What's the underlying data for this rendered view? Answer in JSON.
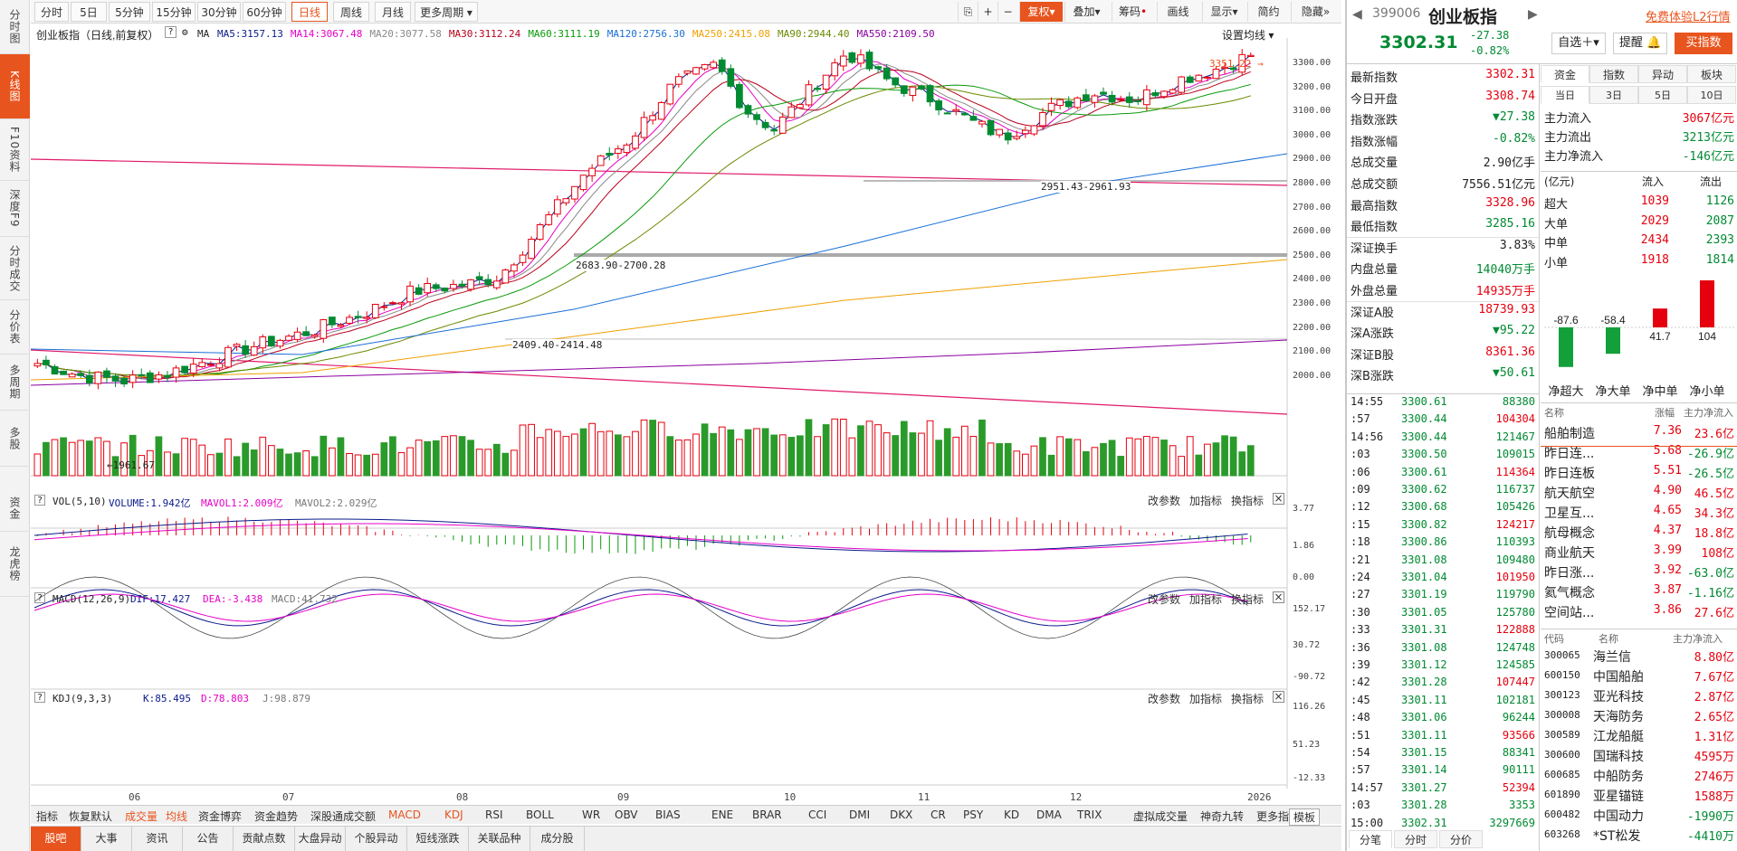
{
  "left_tabs": [
    "分时图",
    "K线图",
    "F10资料",
    "深度F9",
    "分时成交",
    "分价表",
    "多周期",
    "多股",
    "资金",
    "龙虎榜"
  ],
  "toolbar": {
    "periods": [
      "分时",
      "5日",
      "5分钟",
      "15分钟",
      "30分钟",
      "60分钟",
      "日线",
      "周线",
      "月线",
      "更多周期"
    ],
    "active": "日线",
    "right": [
      "复权",
      "叠加",
      "筹码",
      "画线",
      "显示",
      "简约",
      "隐藏"
    ]
  },
  "chart": {
    "title": "创业板指（日线,前复权）",
    "settings": "设置均线",
    "ma_label": "MA",
    "mas": [
      {
        "label": "MA5:3157.13",
        "color": "#0a1a8c"
      },
      {
        "label": "MA14:3067.48",
        "color": "#e600c8"
      },
      {
        "label": "MA20:3077.58",
        "color": "#888888"
      },
      {
        "label": "MA30:3112.24",
        "color": "#b8001a"
      },
      {
        "label": "MA60:3111.19",
        "color": "#0a9a0a"
      },
      {
        "label": "MA120:2756.30",
        "color": "#1a6fd6"
      },
      {
        "label": "MA250:2415.08",
        "color": "#f0a000"
      },
      {
        "label": "MA90:2944.40",
        "color": "#6a8a00"
      },
      {
        "label": "MA550:2109.50",
        "color": "#8a00a0"
      }
    ],
    "y_labels": [
      "3300.00",
      "3200.00",
      "3100.00",
      "3000.00",
      "2900.00",
      "2800.00",
      "2700.00",
      "2600.00",
      "2500.00",
      "2400.00",
      "2300.00",
      "2200.00",
      "2100.00",
      "2000.00"
    ],
    "annotations": {
      "high": "3351.22",
      "a1": "2951.43-2961.93",
      "a2": "2683.90-2700.28",
      "a3": "2409.40-2414.48",
      "low": "1961.67"
    },
    "x_labels": [
      "06",
      "07",
      "08",
      "09",
      "10",
      "11",
      "12",
      "2026"
    ]
  },
  "vol": {
    "label": "VOL(5,10)",
    "v1": "VOLUME:1.942亿",
    "v2": "MAVOL1:2.009亿",
    "v3": "MAVOL2:2.029亿",
    "y": [
      "3.77",
      "1.86",
      "0.00"
    ]
  },
  "macd": {
    "label": "MACD(12,26,9)",
    "v1": "DIF:17.427",
    "v2": "DEA:-3.438",
    "v3": "MACD:41.732",
    "y": [
      "152.17",
      "30.72",
      "-90.72"
    ]
  },
  "kdj": {
    "label": "KDJ(9,3,3)",
    "v1": "K:85.495",
    "v2": "D:78.803",
    "v3": "J:98.879",
    "y": [
      "116.26",
      "51.23",
      "-12.33"
    ]
  },
  "panel_buttons": [
    "改参数",
    "加指标",
    "换指标"
  ],
  "indicators": [
    "指标",
    "恢复默认",
    "成交量",
    "均线",
    "资金博弈",
    "资金趋势",
    "深股通成交额",
    "MACD",
    "KDJ",
    "RSI",
    "BOLL",
    "WR",
    "OBV",
    "BIAS",
    "ENE",
    "BRAR",
    "CCI",
    "DMI",
    "DKX",
    "CR",
    "PSY",
    "KD",
    "DMA",
    "TRIX",
    "虚拟成交量",
    "神奇九转",
    "更多指标",
    "模板"
  ],
  "bottom_tabs": [
    "股吧",
    "大事",
    "资讯",
    "公告",
    "贡献点数",
    "大盘异动",
    "个股异动",
    "短线涨跌",
    "关联品种",
    "成分股"
  ],
  "quote": {
    "code": "399006",
    "name": "创业板指",
    "l2": "免费体验L2行情",
    "price": "3302.31",
    "chg": "-27.38",
    "pct": "-0.82%",
    "btn_watch": "自选",
    "btn_remind": "提醒",
    "btn_buy": "买指数",
    "rows": [
      {
        "k": "最新指数",
        "v": "3302.31",
        "c": "red"
      },
      {
        "k": "今日开盘",
        "v": "3308.74",
        "c": "red"
      },
      {
        "k": "指数涨跌",
        "v": "▼27.38",
        "c": "green"
      },
      {
        "k": "指数涨幅",
        "v": "-0.82%",
        "c": "green"
      },
      {
        "k": "总成交量",
        "v": "2.90亿手",
        "c": "black"
      },
      {
        "k": "总成交额",
        "v": "7556.51亿元",
        "c": "black"
      },
      {
        "k": "最高指数",
        "v": "3328.96",
        "c": "red"
      },
      {
        "k": "最低指数",
        "v": "3285.16",
        "c": "green"
      },
      {
        "k": "深证换手",
        "v": "3.83%",
        "c": "black"
      },
      {
        "k": "内盘总量",
        "v": "14040万手",
        "c": "green"
      },
      {
        "k": "外盘总量",
        "v": "14935万手",
        "c": "red"
      },
      {
        "k": "深证A股",
        "v": "18739.93",
        "c": "red"
      },
      {
        "k": "深A涨跌",
        "v": "▼95.22",
        "c": "green"
      },
      {
        "k": "深证B股",
        "v": "8361.36",
        "c": "red"
      },
      {
        "k": "深B涨跌",
        "v": "▼50.61",
        "c": "green"
      }
    ],
    "ticks": [
      [
        "14:55",
        "3300.61",
        "88380"
      ],
      [
        ":57",
        "3300.44",
        "104304"
      ],
      [
        "14:56",
        "3300.44",
        "121467"
      ],
      [
        ":03",
        "3300.50",
        "109015"
      ],
      [
        ":06",
        "3300.61",
        "114364"
      ],
      [
        ":09",
        "3300.62",
        "116737"
      ],
      [
        ":12",
        "3300.68",
        "105426"
      ],
      [
        ":15",
        "3300.82",
        "124217"
      ],
      [
        ":18",
        "3300.86",
        "110393"
      ],
      [
        ":21",
        "3301.08",
        "109480"
      ],
      [
        ":24",
        "3301.04",
        "101950"
      ],
      [
        ":27",
        "3301.19",
        "119790"
      ],
      [
        ":30",
        "3301.05",
        "125780"
      ],
      [
        ":33",
        "3301.31",
        "122888"
      ],
      [
        ":36",
        "3301.08",
        "124748"
      ],
      [
        ":39",
        "3301.12",
        "124585"
      ],
      [
        ":42",
        "3301.28",
        "107447"
      ],
      [
        ":45",
        "3301.11",
        "102181"
      ],
      [
        ":48",
        "3301.06",
        "96244"
      ],
      [
        ":51",
        "3301.11",
        "93566"
      ],
      [
        ":54",
        "3301.15",
        "88341"
      ],
      [
        ":57",
        "3301.14",
        "90111"
      ],
      [
        "14:57",
        "3301.27",
        "52394"
      ],
      [
        ":03",
        "3301.28",
        "3353"
      ],
      [
        "15:00",
        "3302.31",
        "3297669"
      ]
    ],
    "tick_tabs": [
      "分笔",
      "分时",
      "分价"
    ],
    "fund_tabs": [
      "资金",
      "指数",
      "异动",
      "板块"
    ],
    "fund_sub": [
      "当日",
      "3日",
      "5日",
      "10日"
    ],
    "fund": [
      {
        "k": "主力流入",
        "v": "3067亿元",
        "c": "red"
      },
      {
        "k": "主力流出",
        "v": "3213亿元",
        "c": "green"
      },
      {
        "k": "主力净流入",
        "v": "-146亿元",
        "c": "green"
      }
    ],
    "flow_head": [
      "(亿元)",
      "流入",
      "流出"
    ],
    "flow": [
      [
        "超大",
        "1039",
        "1126"
      ],
      [
        "大单",
        "2029",
        "2087"
      ],
      [
        "中单",
        "2434",
        "2393"
      ],
      [
        "小单",
        "1918",
        "1814"
      ]
    ],
    "net": [
      {
        "label": "净超大",
        "value": -87.6
      },
      {
        "label": "净大单",
        "value": -58.4
      },
      {
        "label": "净中单",
        "value": 41.7
      },
      {
        "label": "净小单",
        "value": 104
      }
    ],
    "sector_head": [
      "名称",
      "涨幅",
      "主力净流入"
    ],
    "sectors": [
      [
        "船舶制造",
        "7.36",
        "23.6亿"
      ],
      [
        "昨日连...",
        "5.68",
        "-26.9亿"
      ],
      [
        "昨日连板",
        "5.51",
        "-26.5亿"
      ],
      [
        "航天航空",
        "4.90",
        "46.5亿"
      ],
      [
        "卫星互...",
        "4.65",
        "34.3亿"
      ],
      [
        "航母概念",
        "4.37",
        "18.8亿"
      ],
      [
        "商业航天",
        "3.99",
        "108亿"
      ],
      [
        "昨日涨...",
        "3.92",
        "-63.0亿"
      ],
      [
        "氦气概念",
        "3.87",
        "-1.16亿"
      ],
      [
        "空间站...",
        "3.86",
        "27.6亿"
      ]
    ],
    "stock_head": [
      "代码",
      "名称",
      "主力净流入"
    ],
    "stocks": [
      [
        "300065",
        "海兰信",
        "8.80亿"
      ],
      [
        "600150",
        "中国船舶",
        "7.67亿"
      ],
      [
        "300123",
        "亚光科技",
        "2.87亿"
      ],
      [
        "300008",
        "天海防务",
        "2.65亿"
      ],
      [
        "300589",
        "江龙船艇",
        "1.31亿"
      ],
      [
        "300600",
        "国瑞科技",
        "4595万"
      ],
      [
        "600685",
        "中船防务",
        "2746万"
      ],
      [
        "601890",
        "亚星锚链",
        "1588万"
      ],
      [
        "600482",
        "中国动力",
        "-1990万"
      ],
      [
        "603268",
        "*ST松发",
        "-4410万"
      ]
    ]
  },
  "chart_data": {
    "type": "candlestick",
    "title": "创业板指（日线,前复权）",
    "ylim": [
      1950,
      3360
    ],
    "x": [
      "06",
      "07",
      "08",
      "09",
      "10",
      "11",
      "12",
      "2026"
    ],
    "y_ticks": [
      3300,
      3200,
      3100,
      3000,
      2900,
      2800,
      2700,
      2600,
      2500,
      2400,
      2300,
      2200,
      2100,
      2000
    ],
    "last_close": 3302.31,
    "high": 3351.22,
    "low": 1961.67
  }
}
